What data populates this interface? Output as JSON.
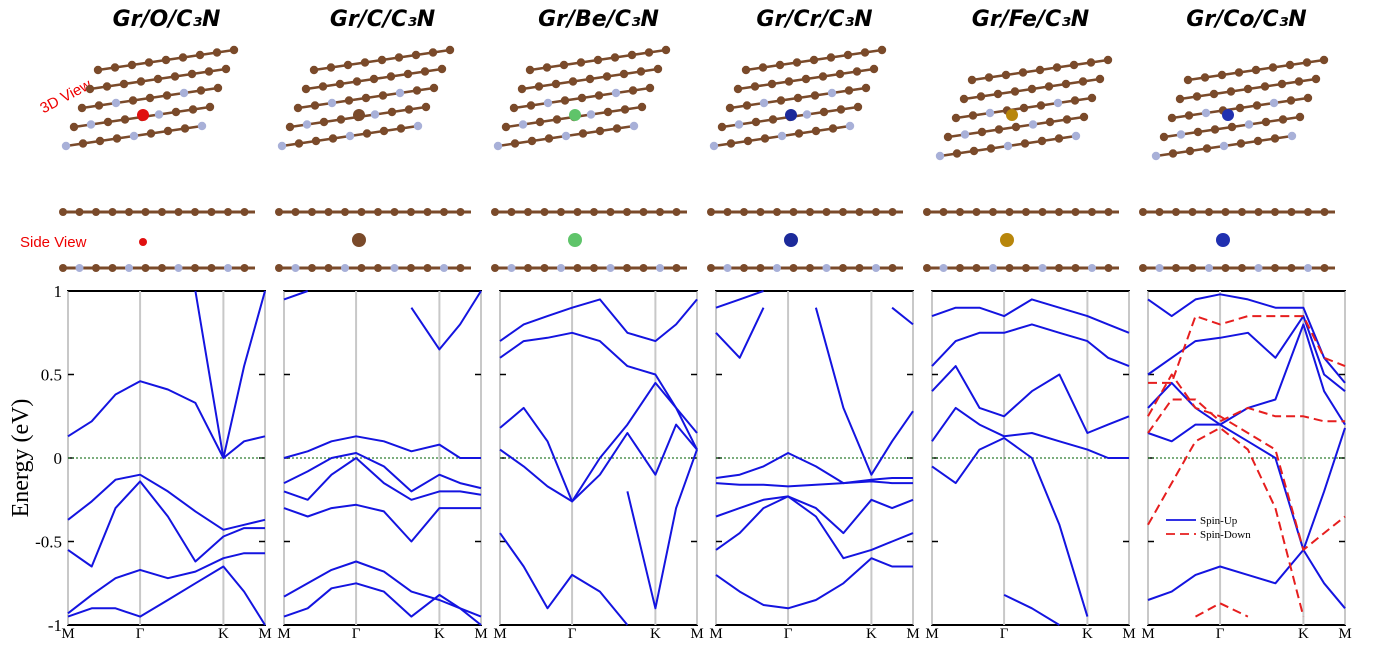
{
  "view_labels": {
    "view_3d": "3D View",
    "view_side": "Side View"
  },
  "chart_data": [
    {
      "type": "line",
      "title": "Gr/O/C₃N",
      "ylabel": "Energy (eV)",
      "show_ytick_labels": true,
      "x": [
        0,
        0.19,
        0.38,
        0.577,
        0.8,
        1.02,
        1.244,
        1.41,
        1.577
      ],
      "xlim": [
        0,
        1.577
      ],
      "xticks": [
        {
          "value": 0,
          "label": "M"
        },
        {
          "value": 0.577,
          "label": "Γ"
        },
        {
          "value": 1.244,
          "label": "K"
        },
        {
          "value": 1.577,
          "label": "M"
        }
      ],
      "ylim": [
        -1,
        1
      ],
      "yticks": [
        -1,
        -0.5,
        0,
        0.5,
        1
      ],
      "fermi_line": 0,
      "fermi_color": "#2e7d32",
      "series": [
        {
          "color": "#1414e0",
          "bands": [
            [
              0.13,
              0.22,
              0.38,
              0.46,
              0.41,
              0.33,
              0.0,
              0.1,
              0.13
            ],
            [
              null,
              null,
              null,
              null,
              null,
              1.0,
              0.0,
              0.55,
              1.0
            ],
            [
              -0.37,
              -0.26,
              -0.13,
              -0.1,
              -0.2,
              -0.32,
              -0.43,
              -0.4,
              -0.37
            ],
            [
              -0.55,
              -0.65,
              -0.3,
              -0.14,
              -0.35,
              -0.62,
              -0.47,
              -0.42,
              -0.42
            ],
            [
              -0.93,
              -0.82,
              -0.72,
              -0.67,
              -0.72,
              -0.68,
              -0.6,
              -0.57,
              -0.57
            ],
            [
              -0.95,
              -0.9,
              -0.9,
              -0.95,
              -0.85,
              -0.75,
              -0.65,
              -0.8,
              -1.0
            ]
          ]
        }
      ]
    },
    {
      "type": "line",
      "title": "Gr/C/C₃N",
      "show_ytick_labels": false,
      "x": [
        0,
        0.19,
        0.38,
        0.577,
        0.8,
        1.02,
        1.244,
        1.41,
        1.577
      ],
      "xlim": [
        0,
        1.577
      ],
      "xticks": [
        {
          "value": 0,
          "label": "M"
        },
        {
          "value": 0.577,
          "label": "Γ"
        },
        {
          "value": 1.244,
          "label": "K"
        },
        {
          "value": 1.577,
          "label": "M"
        }
      ],
      "ylim": [
        -1,
        1
      ],
      "yticks": [
        -1,
        -0.5,
        0,
        0.5,
        1
      ],
      "fermi_line": 0,
      "fermi_color": "#2e7d32",
      "series": [
        {
          "color": "#1414e0",
          "bands": [
            [
              0.0,
              0.04,
              0.1,
              0.13,
              0.1,
              0.04,
              0.08,
              0.0,
              0.0
            ],
            [
              -0.15,
              -0.08,
              0.0,
              0.03,
              -0.05,
              -0.2,
              -0.1,
              -0.15,
              -0.18
            ],
            [
              -0.2,
              -0.25,
              -0.1,
              0.0,
              -0.15,
              -0.25,
              -0.2,
              -0.2,
              -0.22
            ],
            [
              -0.3,
              -0.35,
              -0.3,
              -0.28,
              -0.32,
              -0.5,
              -0.3,
              -0.3,
              -0.3
            ],
            [
              -0.83,
              -0.75,
              -0.67,
              -0.62,
              -0.68,
              -0.8,
              -0.85,
              -0.9,
              -0.95
            ],
            [
              -0.95,
              -0.9,
              -0.78,
              -0.75,
              -0.8,
              -0.95,
              -0.82,
              -0.9,
              -1.0
            ],
            [
              0.95,
              1.0,
              null,
              null,
              null,
              0.9,
              0.65,
              0.8,
              1.0
            ]
          ]
        }
      ]
    },
    {
      "type": "line",
      "title": "Gr/Be/C₃N",
      "show_ytick_labels": false,
      "x": [
        0,
        0.19,
        0.38,
        0.577,
        0.8,
        1.02,
        1.244,
        1.41,
        1.577
      ],
      "xlim": [
        0,
        1.577
      ],
      "xticks": [
        {
          "value": 0,
          "label": "M"
        },
        {
          "value": 0.577,
          "label": "Γ"
        },
        {
          "value": 1.244,
          "label": "K"
        },
        {
          "value": 1.577,
          "label": "M"
        }
      ],
      "ylim": [
        -1,
        1
      ],
      "yticks": [
        -1,
        -0.5,
        0,
        0.5,
        1
      ],
      "fermi_line": 0,
      "fermi_color": "#2e7d32",
      "series": [
        {
          "color": "#1414e0",
          "bands": [
            [
              0.05,
              -0.05,
              -0.17,
              -0.26,
              -0.1,
              0.15,
              -0.1,
              0.2,
              0.05
            ],
            [
              0.18,
              0.3,
              0.1,
              -0.26,
              0.0,
              0.2,
              0.45,
              0.3,
              0.05
            ],
            [
              0.6,
              0.7,
              0.72,
              0.75,
              0.7,
              0.55,
              0.5,
              0.3,
              0.15
            ],
            [
              0.7,
              0.8,
              0.85,
              0.9,
              0.95,
              0.75,
              0.7,
              0.8,
              0.95
            ],
            [
              -0.45,
              -0.65,
              -0.9,
              -0.7,
              -0.8,
              -1.0,
              null,
              null,
              null
            ],
            [
              null,
              null,
              null,
              null,
              null,
              -0.2,
              -0.9,
              -0.3,
              0.05
            ]
          ]
        }
      ]
    },
    {
      "type": "line",
      "title": "Gr/Cr/C₃N",
      "show_ytick_labels": false,
      "x": [
        0,
        0.19,
        0.38,
        0.577,
        0.8,
        1.02,
        1.244,
        1.41,
        1.577
      ],
      "xlim": [
        0,
        1.577
      ],
      "xticks": [
        {
          "value": 0,
          "label": "M"
        },
        {
          "value": 0.577,
          "label": "Γ"
        },
        {
          "value": 1.244,
          "label": "K"
        },
        {
          "value": 1.577,
          "label": "M"
        }
      ],
      "ylim": [
        -1,
        1
      ],
      "yticks": [
        -1,
        -0.5,
        0,
        0.5,
        1
      ],
      "fermi_line": 0,
      "fermi_color": "#2e7d32",
      "series": [
        {
          "color": "#1414e0",
          "bands": [
            [
              -0.12,
              -0.1,
              -0.05,
              0.03,
              -0.05,
              -0.15,
              -0.13,
              -0.12,
              -0.12
            ],
            [
              -0.15,
              -0.16,
              -0.16,
              -0.17,
              -0.16,
              -0.15,
              -0.14,
              -0.15,
              -0.15
            ],
            [
              -0.35,
              -0.3,
              -0.25,
              -0.23,
              -0.3,
              -0.45,
              -0.25,
              -0.3,
              -0.25
            ],
            [
              -0.55,
              -0.45,
              -0.3,
              -0.23,
              -0.35,
              -0.6,
              -0.55,
              -0.5,
              -0.45
            ],
            [
              -0.7,
              -0.8,
              -0.88,
              -0.9,
              -0.85,
              -0.75,
              -0.6,
              -0.65,
              -0.65
            ],
            [
              0.75,
              0.6,
              0.9,
              null,
              0.9,
              0.3,
              -0.1,
              0.1,
              0.28
            ],
            [
              0.9,
              0.95,
              1.0,
              null,
              null,
              null,
              null,
              0.9,
              0.8
            ]
          ]
        }
      ]
    },
    {
      "type": "line",
      "title": "Gr/Fe/C₃N",
      "show_ytick_labels": false,
      "x": [
        0,
        0.19,
        0.38,
        0.577,
        0.8,
        1.02,
        1.244,
        1.41,
        1.577
      ],
      "xlim": [
        0,
        1.577
      ],
      "xticks": [
        {
          "value": 0,
          "label": "M"
        },
        {
          "value": 0.577,
          "label": "Γ"
        },
        {
          "value": 1.244,
          "label": "K"
        },
        {
          "value": 1.577,
          "label": "M"
        }
      ],
      "ylim": [
        -1,
        1
      ],
      "yticks": [
        -1,
        -0.5,
        0,
        0.5,
        1
      ],
      "fermi_line": 0,
      "fermi_color": "#2e7d32",
      "series": [
        {
          "color": "#1414e0",
          "bands": [
            [
              0.1,
              0.3,
              0.2,
              0.13,
              0.15,
              0.1,
              0.05,
              0.0,
              0.0
            ],
            [
              0.4,
              0.55,
              0.3,
              0.25,
              0.4,
              0.5,
              0.15,
              0.2,
              0.25
            ],
            [
              0.55,
              0.7,
              0.75,
              0.75,
              0.8,
              0.75,
              0.7,
              0.6,
              0.55
            ],
            [
              0.85,
              0.9,
              0.9,
              0.85,
              0.95,
              0.9,
              0.85,
              0.8,
              0.75
            ],
            [
              -0.05,
              -0.15,
              0.05,
              0.12,
              0.0,
              -0.4,
              -0.95,
              null,
              null
            ],
            [
              null,
              null,
              null,
              -0.82,
              -0.9,
              -1.0,
              null,
              null,
              null
            ]
          ]
        }
      ]
    },
    {
      "type": "line",
      "title": "Gr/Co/C₃N",
      "show_ytick_labels": false,
      "legend": "lower left",
      "x": [
        0,
        0.19,
        0.38,
        0.577,
        0.8,
        1.02,
        1.244,
        1.41,
        1.577
      ],
      "xlim": [
        0,
        1.577
      ],
      "xticks": [
        {
          "value": 0,
          "label": "M"
        },
        {
          "value": 0.577,
          "label": "Γ"
        },
        {
          "value": 1.244,
          "label": "K"
        },
        {
          "value": 1.577,
          "label": "M"
        }
      ],
      "ylim": [
        -1,
        1
      ],
      "yticks": [
        -1,
        -0.5,
        0,
        0.5,
        1
      ],
      "fermi_line": 0,
      "fermi_color": "#2e7d32",
      "series": [
        {
          "name": "Spin-Up",
          "color": "#1414e0",
          "bands": [
            [
              0.5,
              0.6,
              0.7,
              0.72,
              0.75,
              0.6,
              0.85,
              0.5,
              0.4
            ],
            [
              0.3,
              0.45,
              0.3,
              0.2,
              0.3,
              0.35,
              0.8,
              0.4,
              0.2
            ],
            [
              0.15,
              0.1,
              0.2,
              0.2,
              0.1,
              0.0,
              -0.55,
              -0.2,
              0.18
            ],
            [
              -0.85,
              -0.8,
              -0.7,
              -0.65,
              -0.7,
              -0.75,
              -0.55,
              -0.75,
              -0.9
            ],
            [
              0.95,
              0.85,
              0.95,
              0.98,
              0.95,
              0.9,
              0.9,
              0.6,
              0.45
            ]
          ]
        },
        {
          "name": "Spin-Down",
          "color": "#e61e1e",
          "dashed": true,
          "bands": [
            [
              0.25,
              0.5,
              0.3,
              0.25,
              0.15,
              0.05,
              -0.55,
              -0.45,
              -0.35
            ],
            [
              0.15,
              0.35,
              0.35,
              0.22,
              0.3,
              0.25,
              0.25,
              0.22,
              0.22
            ],
            [
              0.45,
              0.45,
              0.85,
              0.8,
              0.85,
              0.85,
              0.85,
              0.6,
              0.55
            ],
            [
              -0.4,
              -0.15,
              0.1,
              0.18,
              0.05,
              -0.3,
              -0.95,
              null,
              null
            ],
            [
              null,
              null,
              -0.95,
              -0.87,
              -0.95,
              null,
              null,
              null,
              null
            ]
          ]
        }
      ]
    }
  ]
}
